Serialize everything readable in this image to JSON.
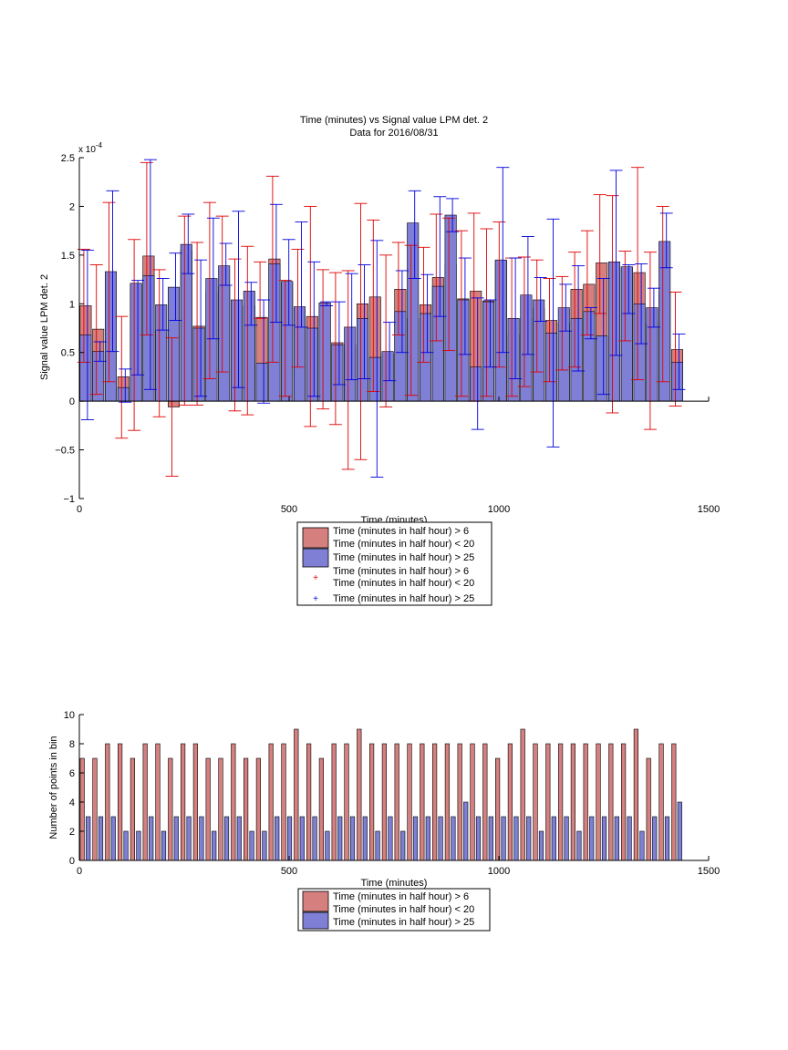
{
  "colors": {
    "red_face": "#d57f7f",
    "blue_face": "#7f7fd5",
    "red_line": "#e00000",
    "blue_line": "#0000e0",
    "axis": "#000000"
  },
  "chart_data": [
    {
      "type": "bar",
      "title": "Time (minutes) vs Signal value LPM det. 2",
      "subtitle": "Data for 2016/08/31",
      "xlabel": "Time (minutes)",
      "ylabel": "Signal value LPM det. 2",
      "exponent_label": "x 10",
      "exponent_power": "-4",
      "xlim": [
        0,
        1500
      ],
      "ylim": [
        -1,
        2.5
      ],
      "x_ticks": [
        0,
        500,
        1000,
        1500
      ],
      "y_ticks": [
        -1,
        -0.5,
        0,
        0.5,
        1,
        1.5,
        2,
        2.5
      ],
      "x_tick_labels": [
        "0",
        "500",
        "1000",
        "1500"
      ],
      "y_tick_labels": [
        "−1",
        "−0.5",
        "0",
        "0.5",
        "1",
        "1.5",
        "2",
        "2.5"
      ],
      "grid": false,
      "legend": {
        "placement": "below",
        "entries": [
          {
            "label1": "Time (minutes in half hour) > 6",
            "label2": "Time (minutes in half hour) < 20",
            "kind": "bar",
            "color": "red"
          },
          {
            "label1": "Time (minutes in half hour) > 25",
            "label2": "",
            "kind": "bar",
            "color": "blue"
          },
          {
            "label1": "Time (minutes in half hour) > 6",
            "label2": "Time (minutes in half hour) < 20",
            "kind": "marker",
            "color": "red"
          },
          {
            "label1": "Time (minutes in half hour) > 25",
            "label2": "",
            "kind": "marker",
            "color": "blue"
          }
        ]
      },
      "series": [
        {
          "name": "Time (minutes in half hour) > 6 Time (minutes in half hour) < 20",
          "x": [
            15,
            45,
            75,
            105,
            135,
            165,
            195,
            225,
            255,
            285,
            315,
            345,
            375,
            405,
            435,
            465,
            495,
            525,
            555,
            585,
            615,
            645,
            675,
            705,
            735,
            765,
            795,
            825,
            855,
            885,
            915,
            945,
            975,
            1005,
            1035,
            1065,
            1095,
            1125,
            1155,
            1185,
            1215,
            1245,
            1275,
            1305,
            1335,
            1365,
            1395,
            1425
          ],
          "values": [
            0.98,
            0.74,
            0.6,
            0.25,
            1.2,
            1.49,
            0.73,
            -0.06,
            1.55,
            0.77,
            1.12,
            1.18,
            0.6,
            0.98,
            0.86,
            1.46,
            1.22,
            0.8,
            0.87,
            1.0,
            0.6,
            0.58,
            1.0,
            1.07,
            0.48,
            1.15,
            0.85,
            0.99,
            1.27,
            1.4,
            1.05,
            1.13,
            1.03,
            1.44,
            0.68,
            0.85,
            0.95,
            0.83,
            0.8,
            1.15,
            1.2,
            1.42,
            1.4,
            1.37,
            1.32,
            0.8,
            1.12,
            0.53
          ],
          "err_low": [
            0.4,
            0.07,
            0.2,
            -0.38,
            -0.3,
            0.68,
            -0.16,
            -0.77,
            -0.04,
            -0.04,
            0.23,
            0.3,
            -0.1,
            -0.14,
            0.85,
            0.4,
            0.05,
            0.35,
            -0.26,
            -0.08,
            -0.24,
            -0.7,
            -0.6,
            0.1,
            -0.06,
            0.68,
            0.06,
            0.4,
            0.62,
            0.52,
            0.05,
            0.0,
            0.05,
            0.35,
            0.05,
            0.15,
            0.3,
            0.2,
            0.32,
            0.35,
            0.68,
            0.9,
            -0.12,
            0.62,
            0.22,
            -0.29,
            0.2,
            -0.05
          ],
          "err_high": [
            1.56,
            1.4,
            2.04,
            0.87,
            1.66,
            2.45,
            1.35,
            0.65,
            1.9,
            1.63,
            2.04,
            1.9,
            1.46,
            1.59,
            1.43,
            2.31,
            1.24,
            1.56,
            2.0,
            1.35,
            1.32,
            1.34,
            2.03,
            1.86,
            1.5,
            1.63,
            1.6,
            1.58,
            1.92,
            1.88,
            1.75,
            1.93,
            1.77,
            1.84,
            1.47,
            1.48,
            1.45,
            1.26,
            1.28,
            1.53,
            1.75,
            2.12,
            2.11,
            1.54,
            2.4,
            1.53,
            2.0,
            1.12
          ]
        },
        {
          "name": "Time (minutes in half hour) > 25",
          "x": [
            15,
            45,
            75,
            105,
            135,
            165,
            195,
            225,
            255,
            285,
            315,
            345,
            375,
            405,
            435,
            465,
            495,
            525,
            555,
            585,
            615,
            645,
            675,
            705,
            735,
            765,
            795,
            825,
            855,
            885,
            915,
            945,
            975,
            1005,
            1035,
            1065,
            1095,
            1125,
            1155,
            1185,
            1215,
            1245,
            1275,
            1305,
            1335,
            1365,
            1395,
            1425
          ],
          "values": [
            0.68,
            0.51,
            1.33,
            0.14,
            1.21,
            1.29,
            0.99,
            1.17,
            1.61,
            0.75,
            1.26,
            1.39,
            1.04,
            1.13,
            0.39,
            1.41,
            1.23,
            0.97,
            0.75,
            1.01,
            0.58,
            0.76,
            0.85,
            0.45,
            0.51,
            0.92,
            1.83,
            0.9,
            1.18,
            1.91,
            1.04,
            0.35,
            1.02,
            1.45,
            0.85,
            1.09,
            1.04,
            0.7,
            0.96,
            0.85,
            0.92,
            0.67,
            1.43,
            1.38,
            1.0,
            0.96,
            1.64,
            0.4
          ],
          "err_low": [
            -0.19,
            0.41,
            0.51,
            -0.01,
            0.27,
            0.12,
            0.73,
            0.83,
            1.31,
            0.05,
            0.64,
            1.19,
            0.14,
            0.78,
            -0.02,
            0.81,
            0.78,
            0.76,
            0.05,
            0.98,
            0.17,
            0.22,
            0.23,
            -0.78,
            0.21,
            0.5,
            1.26,
            0.5,
            0.87,
            1.74,
            0.48,
            -0.29,
            0.35,
            0.5,
            0.23,
            0.48,
            0.82,
            -0.47,
            0.72,
            0.31,
            0.64,
            0.07,
            0.47,
            0.9,
            0.59,
            0.76,
            1.37,
            0.12
          ],
          "err_high": [
            1.55,
            0.61,
            2.16,
            0.33,
            1.24,
            2.48,
            1.26,
            1.52,
            1.92,
            1.45,
            1.88,
            1.62,
            1.95,
            1.22,
            1.04,
            2.02,
            1.66,
            1.84,
            1.43,
            1.02,
            1.02,
            1.31,
            1.4,
            1.65,
            0.81,
            1.34,
            2.16,
            1.3,
            2.1,
            2.08,
            1.47,
            1.06,
            1.04,
            2.4,
            1.47,
            1.69,
            1.27,
            1.87,
            1.2,
            1.39,
            0.96,
            1.26,
            2.37,
            1.4,
            1.41,
            1.16,
            1.93,
            0.69
          ]
        }
      ]
    },
    {
      "type": "bar",
      "xlabel": "Time (minutes)",
      "ylabel": "Number of points in bin",
      "xlim": [
        0,
        1500
      ],
      "ylim": [
        0,
        10
      ],
      "x_ticks": [
        0,
        500,
        1000,
        1500
      ],
      "y_ticks": [
        0,
        2,
        4,
        6,
        8,
        10
      ],
      "x_tick_labels": [
        "0",
        "500",
        "1000",
        "1500"
      ],
      "y_tick_labels": [
        "0",
        "2",
        "4",
        "6",
        "8",
        "10"
      ],
      "grid": false,
      "legend": {
        "placement": "below",
        "entries": [
          {
            "label1": "Time (minutes in half hour) > 6",
            "label2": "Time (minutes in half hour) < 20",
            "kind": "bar",
            "color": "red"
          },
          {
            "label1": "Time (minutes in half hour) > 25",
            "label2": "",
            "kind": "bar",
            "color": "blue"
          }
        ]
      },
      "series": [
        {
          "name": "Time (minutes in half hour) > 6 Time (minutes in half hour) < 20",
          "x": [
            7,
            37,
            67,
            97,
            127,
            157,
            187,
            217,
            247,
            277,
            307,
            337,
            367,
            397,
            427,
            457,
            487,
            517,
            547,
            577,
            607,
            637,
            667,
            697,
            727,
            757,
            787,
            817,
            847,
            877,
            907,
            937,
            967,
            997,
            1027,
            1057,
            1087,
            1117,
            1147,
            1177,
            1207,
            1237,
            1267,
            1297,
            1327,
            1357,
            1387,
            1417
          ],
          "values": [
            7,
            7,
            8,
            8,
            7,
            8,
            8,
            7,
            8,
            8,
            7,
            7,
            8,
            7,
            7,
            8,
            8,
            9,
            8,
            7,
            8,
            8,
            9,
            8,
            8,
            8,
            8,
            8,
            8,
            8,
            8,
            8,
            8,
            7,
            8,
            9,
            8,
            8,
            8,
            8,
            8,
            8,
            8,
            8,
            9,
            7,
            8,
            8
          ]
        },
        {
          "name": "Time (minutes in half hour) > 25",
          "x": [
            21,
            51,
            81,
            111,
            141,
            171,
            201,
            231,
            261,
            291,
            321,
            351,
            381,
            411,
            441,
            471,
            501,
            531,
            561,
            591,
            621,
            651,
            681,
            711,
            741,
            771,
            801,
            831,
            861,
            891,
            921,
            951,
            981,
            1011,
            1041,
            1071,
            1101,
            1131,
            1161,
            1191,
            1221,
            1251,
            1281,
            1311,
            1341,
            1371,
            1401,
            1431
          ],
          "values": [
            3,
            3,
            3,
            2,
            2,
            3,
            2,
            3,
            3,
            3,
            2,
            3,
            3,
            2,
            2,
            3,
            3,
            3,
            3,
            2,
            3,
            3,
            3,
            2,
            3,
            2,
            3,
            3,
            3,
            3,
            4,
            3,
            3,
            3,
            3,
            3,
            2,
            3,
            3,
            2,
            3,
            3,
            3,
            3,
            2,
            3,
            3,
            4
          ]
        }
      ]
    }
  ]
}
